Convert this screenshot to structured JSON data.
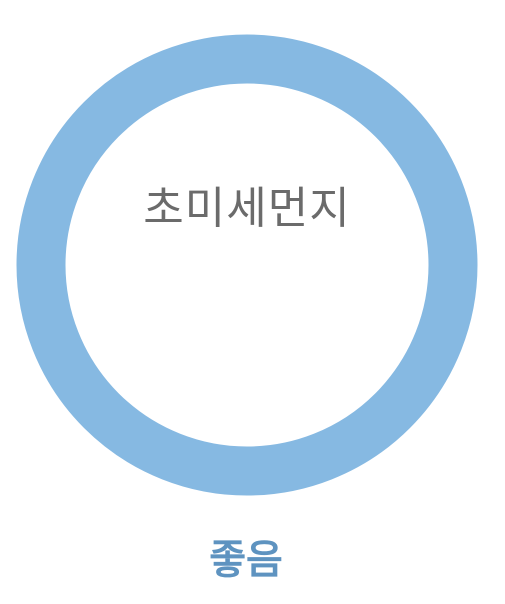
{
  "gauge": {
    "label": "초미세먼지",
    "ring_color": "#86B9E2",
    "label_color": "#6B6B6B"
  },
  "status": {
    "text": "좋음",
    "color": "#5E93C0"
  }
}
